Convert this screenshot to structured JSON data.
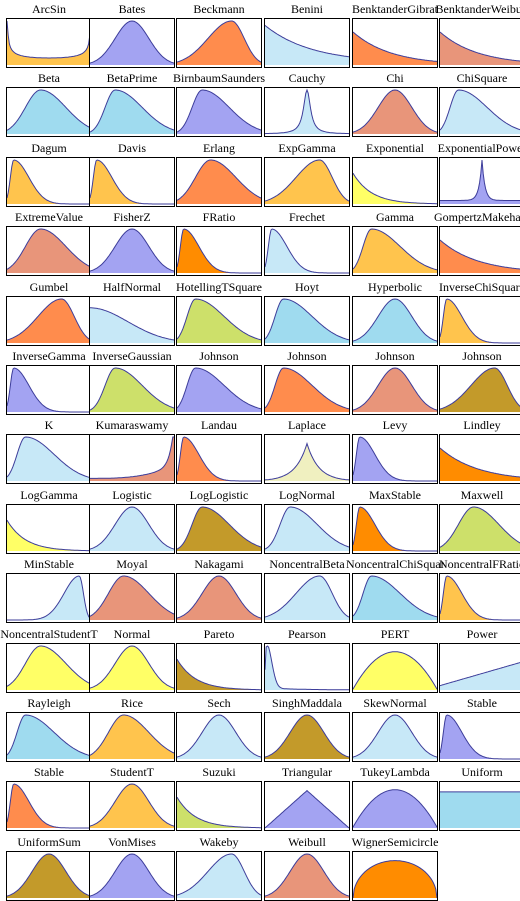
{
  "panels": [
    {
      "name": "ArcSin",
      "shape": "arcsine",
      "color": "#ffc44d"
    },
    {
      "name": "Bates",
      "shape": "bell",
      "color": "#a3a3f2"
    },
    {
      "name": "Beckmann",
      "shape": "bell-right",
      "color": "#ff8c4d"
    },
    {
      "name": "Benini",
      "shape": "decay-flat",
      "color": "#c7e8f7"
    },
    {
      "name": "BenktanderGibrat",
      "shape": "decay-mid",
      "color": "#ff8c4d"
    },
    {
      "name": "BenktanderWeibull",
      "shape": "decay-mid",
      "color": "#e8957a"
    },
    {
      "name": "Beta",
      "shape": "bell-left",
      "color": "#9fdbef"
    },
    {
      "name": "BetaPrime",
      "shape": "skew-left",
      "color": "#9fdbef"
    },
    {
      "name": "BirnbaumSaunders",
      "shape": "skew-left",
      "color": "#a3a3f2"
    },
    {
      "name": "Cauchy",
      "shape": "peak",
      "color": "#c7e8f7"
    },
    {
      "name": "Chi",
      "shape": "bell",
      "color": "#e8957a"
    },
    {
      "name": "ChiSquare",
      "shape": "skew-mid",
      "color": "#c7e8f7"
    },
    {
      "name": "Dagum",
      "shape": "skew-sharp",
      "color": "#ffc44d"
    },
    {
      "name": "Davis",
      "shape": "skew-sharp",
      "color": "#ffc44d"
    },
    {
      "name": "Erlang",
      "shape": "bell-left",
      "color": "#ff8c4d"
    },
    {
      "name": "ExpGamma",
      "shape": "bell-right",
      "color": "#ffc44d"
    },
    {
      "name": "Exponential",
      "shape": "decay-line",
      "color": "#ffff66"
    },
    {
      "name": "ExponentialPower",
      "shape": "spike",
      "color": "#a3a3f2"
    },
    {
      "name": "ExtremeValue",
      "shape": "bell-left",
      "color": "#e8957a"
    },
    {
      "name": "FisherZ",
      "shape": "bell",
      "color": "#a3a3f2"
    },
    {
      "name": "FRatio",
      "shape": "skew-sharp",
      "color": "#ff8c00"
    },
    {
      "name": "Frechet",
      "shape": "skew-sharp",
      "color": "#c7e8f7"
    },
    {
      "name": "Gamma",
      "shape": "skew-mid",
      "color": "#ffc44d"
    },
    {
      "name": "GompertzMakeham",
      "shape": "decay-mid",
      "color": "#ff8c4d"
    },
    {
      "name": "Gumbel",
      "shape": "bell-right",
      "color": "#ff8c4d"
    },
    {
      "name": "HalfNormal",
      "shape": "half",
      "color": "#c7e8f7"
    },
    {
      "name": "HotellingTSquare",
      "shape": "skew-mid",
      "color": "#cde06a"
    },
    {
      "name": "Hoyt",
      "shape": "skew-mid",
      "color": "#9fdbef"
    },
    {
      "name": "Hyperbolic",
      "shape": "bell",
      "color": "#9fdbef"
    },
    {
      "name": "InverseChiSquare",
      "shape": "skew-sharp",
      "color": "#ffc44d"
    },
    {
      "name": "InverseGamma",
      "shape": "skew-sharp",
      "color": "#a3a3f2"
    },
    {
      "name": "InverseGaussian",
      "shape": "skew-left",
      "color": "#cde06a"
    },
    {
      "name": "Johnson",
      "shape": "skew-mid",
      "color": "#a3a3f2"
    },
    {
      "name": "Johnson",
      "shape": "skew-mid",
      "color": "#ff8c4d"
    },
    {
      "name": "Johnson",
      "shape": "bell",
      "color": "#e8957a"
    },
    {
      "name": "Johnson",
      "shape": "bell-right",
      "color": "#c39a2a"
    },
    {
      "name": "K",
      "shape": "skew-mid",
      "color": "#c7e8f7"
    },
    {
      "name": "Kumaraswamy",
      "shape": "ramp-up",
      "color": "#e8957a"
    },
    {
      "name": "Landau",
      "shape": "skew-sharp",
      "color": "#ff8c4d"
    },
    {
      "name": "Laplace",
      "shape": "laplace",
      "color": "#f0f0c0"
    },
    {
      "name": "Levy",
      "shape": "skew-sharp",
      "color": "#a3a3f2"
    },
    {
      "name": "Lindley",
      "shape": "decay-mid",
      "color": "#ff8c00"
    },
    {
      "name": "LogGamma",
      "shape": "decay-line",
      "color": "#ffff66"
    },
    {
      "name": "Logistic",
      "shape": "bell",
      "color": "#c7e8f7"
    },
    {
      "name": "LogLogistic",
      "shape": "skew-left",
      "color": "#c39a2a"
    },
    {
      "name": "LogNormal",
      "shape": "skew-left",
      "color": "#c7e8f7"
    },
    {
      "name": "MaxStable",
      "shape": "skew-sharp",
      "color": "#ff8c00"
    },
    {
      "name": "Maxwell",
      "shape": "bell-left",
      "color": "#cde06a"
    },
    {
      "name": "MinStable",
      "shape": "minstable",
      "color": "#c7e8f7"
    },
    {
      "name": "Moyal",
      "shape": "bell-left",
      "color": "#e8957a"
    },
    {
      "name": "Nakagami",
      "shape": "bell",
      "color": "#e8957a"
    },
    {
      "name": "NoncentralBeta",
      "shape": "bell-right",
      "color": "#c7e8f7"
    },
    {
      "name": "NoncentralChiSquare",
      "shape": "skew-mid",
      "color": "#9fdbef"
    },
    {
      "name": "NoncentralFRatio",
      "shape": "skew-sharp",
      "color": "#ffc44d"
    },
    {
      "name": "NoncentralStudentT",
      "shape": "bell-left",
      "color": "#ffff66"
    },
    {
      "name": "Normal",
      "shape": "bell",
      "color": "#ffff66"
    },
    {
      "name": "Pareto",
      "shape": "decay-line",
      "color": "#c39a2a"
    },
    {
      "name": "Pearson",
      "shape": "pearson",
      "color": "#c7e8f7"
    },
    {
      "name": "PERT",
      "shape": "dome",
      "color": "#ffff66"
    },
    {
      "name": "Power",
      "shape": "power",
      "color": "#c7e8f7"
    },
    {
      "name": "Rayleigh",
      "shape": "skew-mid",
      "color": "#9fdbef"
    },
    {
      "name": "Rice",
      "shape": "bell-left",
      "color": "#ffc44d"
    },
    {
      "name": "Sech",
      "shape": "bell",
      "color": "#c7e8f7"
    },
    {
      "name": "SinghMaddala",
      "shape": "bell",
      "color": "#c39a2a"
    },
    {
      "name": "SkewNormal",
      "shape": "bell",
      "color": "#c7e8f7"
    },
    {
      "name": "Stable",
      "shape": "skew-sharp",
      "color": "#a3a3f2"
    },
    {
      "name": "Stable",
      "shape": "skew-sharp",
      "color": "#ff8c4d"
    },
    {
      "name": "StudentT",
      "shape": "bell",
      "color": "#ffc44d"
    },
    {
      "name": "Suzuki",
      "shape": "decay-line",
      "color": "#cde06a"
    },
    {
      "name": "Triangular",
      "shape": "triangle",
      "color": "#a3a3f2"
    },
    {
      "name": "TukeyLambda",
      "shape": "dome",
      "color": "#a3a3f2"
    },
    {
      "name": "Uniform",
      "shape": "uniform",
      "color": "#9fdbef"
    },
    {
      "name": "UniformSum",
      "shape": "bell",
      "color": "#c39a2a"
    },
    {
      "name": "VonMises",
      "shape": "bell",
      "color": "#a3a3f2"
    },
    {
      "name": "Wakeby",
      "shape": "bell-right",
      "color": "#c7e8f7"
    },
    {
      "name": "Weibull",
      "shape": "bell",
      "color": "#e8957a"
    },
    {
      "name": "WignerSemicircle",
      "shape": "semicircle",
      "color": "#ff8c00"
    }
  ]
}
